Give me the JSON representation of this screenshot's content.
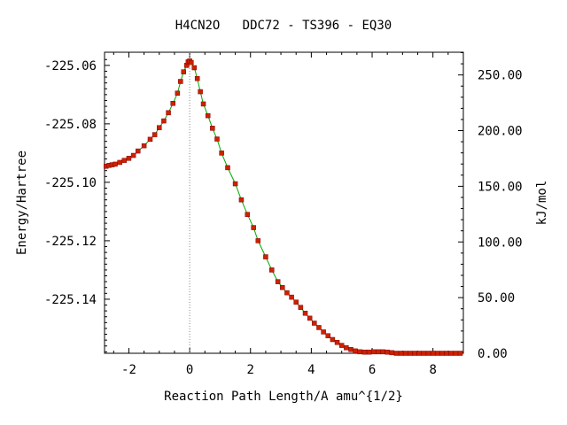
{
  "chart_data": {
    "type": "line",
    "title": "H4CN2O   DDC72 - TS396 - EQ30",
    "xlabel": "Reaction Path Length/A amu^{1/2}",
    "ylabel": "Energy/Hartree",
    "y2label": "kJ/mol",
    "xlim": [
      -2.8,
      9.0
    ],
    "ylim": [
      -225.1585,
      -225.0555
    ],
    "y2lim": [
      0.0,
      270.4
    ],
    "x_ticks": [
      "-2",
      "0",
      "2",
      "4",
      "6",
      "8"
    ],
    "x_tick_values": [
      -2,
      0,
      2,
      4,
      6,
      8
    ],
    "y_ticks": [
      "-225.06",
      "-225.08",
      "-225.10",
      "-225.12",
      "-225.14"
    ],
    "y_tick_values": [
      -225.06,
      -225.08,
      -225.1,
      -225.12,
      -225.14
    ],
    "y2_ticks": [
      "0.00",
      "50.00",
      "100.00",
      "150.00",
      "200.00",
      "250.00"
    ],
    "y2_tick_values": [
      0,
      50,
      100,
      150,
      200,
      250
    ],
    "grid": false,
    "legend": "none",
    "line_color": "#00aa00",
    "marker_color": "#cc2200",
    "ts_line_color": "#888888",
    "ts_x": 0.0,
    "series": [
      {
        "x": [
          -2.75,
          -2.65,
          -2.55,
          -2.45,
          -2.3,
          -2.15,
          -2.0,
          -1.85,
          -1.7,
          -1.5,
          -1.3,
          -1.15,
          -1.0,
          -0.85,
          -0.7,
          -0.55,
          -0.4,
          -0.3,
          -0.2,
          -0.1,
          -0.05,
          0.0,
          0.05,
          0.15,
          0.25,
          0.35,
          0.45,
          0.6,
          0.75,
          0.9,
          1.05,
          1.25,
          1.5,
          1.7,
          1.9,
          2.1,
          2.25,
          2.5,
          2.7,
          2.9,
          3.05,
          3.2,
          3.35,
          3.5,
          3.65,
          3.8,
          3.95,
          4.1,
          4.25,
          4.4,
          4.55,
          4.7,
          4.85,
          5.0,
          5.15,
          5.3,
          5.45,
          5.6,
          5.75,
          5.9,
          6.05,
          6.2,
          6.35,
          6.5,
          6.65,
          6.8,
          6.95,
          7.1,
          7.25,
          7.4,
          7.55,
          7.7,
          7.85,
          8.0,
          8.15,
          8.3,
          8.45,
          8.6,
          8.75,
          8.9
        ],
        "y": [
          -225.0945,
          -225.0942,
          -225.094,
          -225.0938,
          -225.0932,
          -225.0925,
          -225.0918,
          -225.0908,
          -225.0893,
          -225.0875,
          -225.0853,
          -225.0837,
          -225.0813,
          -225.079,
          -225.0762,
          -225.073,
          -225.0695,
          -225.0655,
          -225.0622,
          -225.06,
          -225.0588,
          -225.0585,
          -225.059,
          -225.0608,
          -225.0645,
          -225.069,
          -225.0732,
          -225.0772,
          -225.0815,
          -225.0852,
          -225.09,
          -225.095,
          -225.1005,
          -225.106,
          -225.111,
          -225.1155,
          -225.12,
          -225.1255,
          -225.13,
          -225.134,
          -225.136,
          -225.1378,
          -225.1393,
          -225.141,
          -225.1428,
          -225.1448,
          -225.1465,
          -225.1482,
          -225.1497,
          -225.1512,
          -225.1525,
          -225.1538,
          -225.1548,
          -225.1558,
          -225.1566,
          -225.1572,
          -225.1577,
          -225.158,
          -225.1581,
          -225.1581,
          -225.158,
          -225.158,
          -225.158,
          -225.1581,
          -225.1583,
          -225.1585,
          -225.1585,
          -225.1585,
          -225.1585,
          -225.1585,
          -225.1585,
          -225.1585,
          -225.1585,
          -225.1585,
          -225.1585,
          -225.1585,
          -225.1585,
          -225.1585,
          -225.1585,
          -225.1585
        ]
      }
    ]
  }
}
